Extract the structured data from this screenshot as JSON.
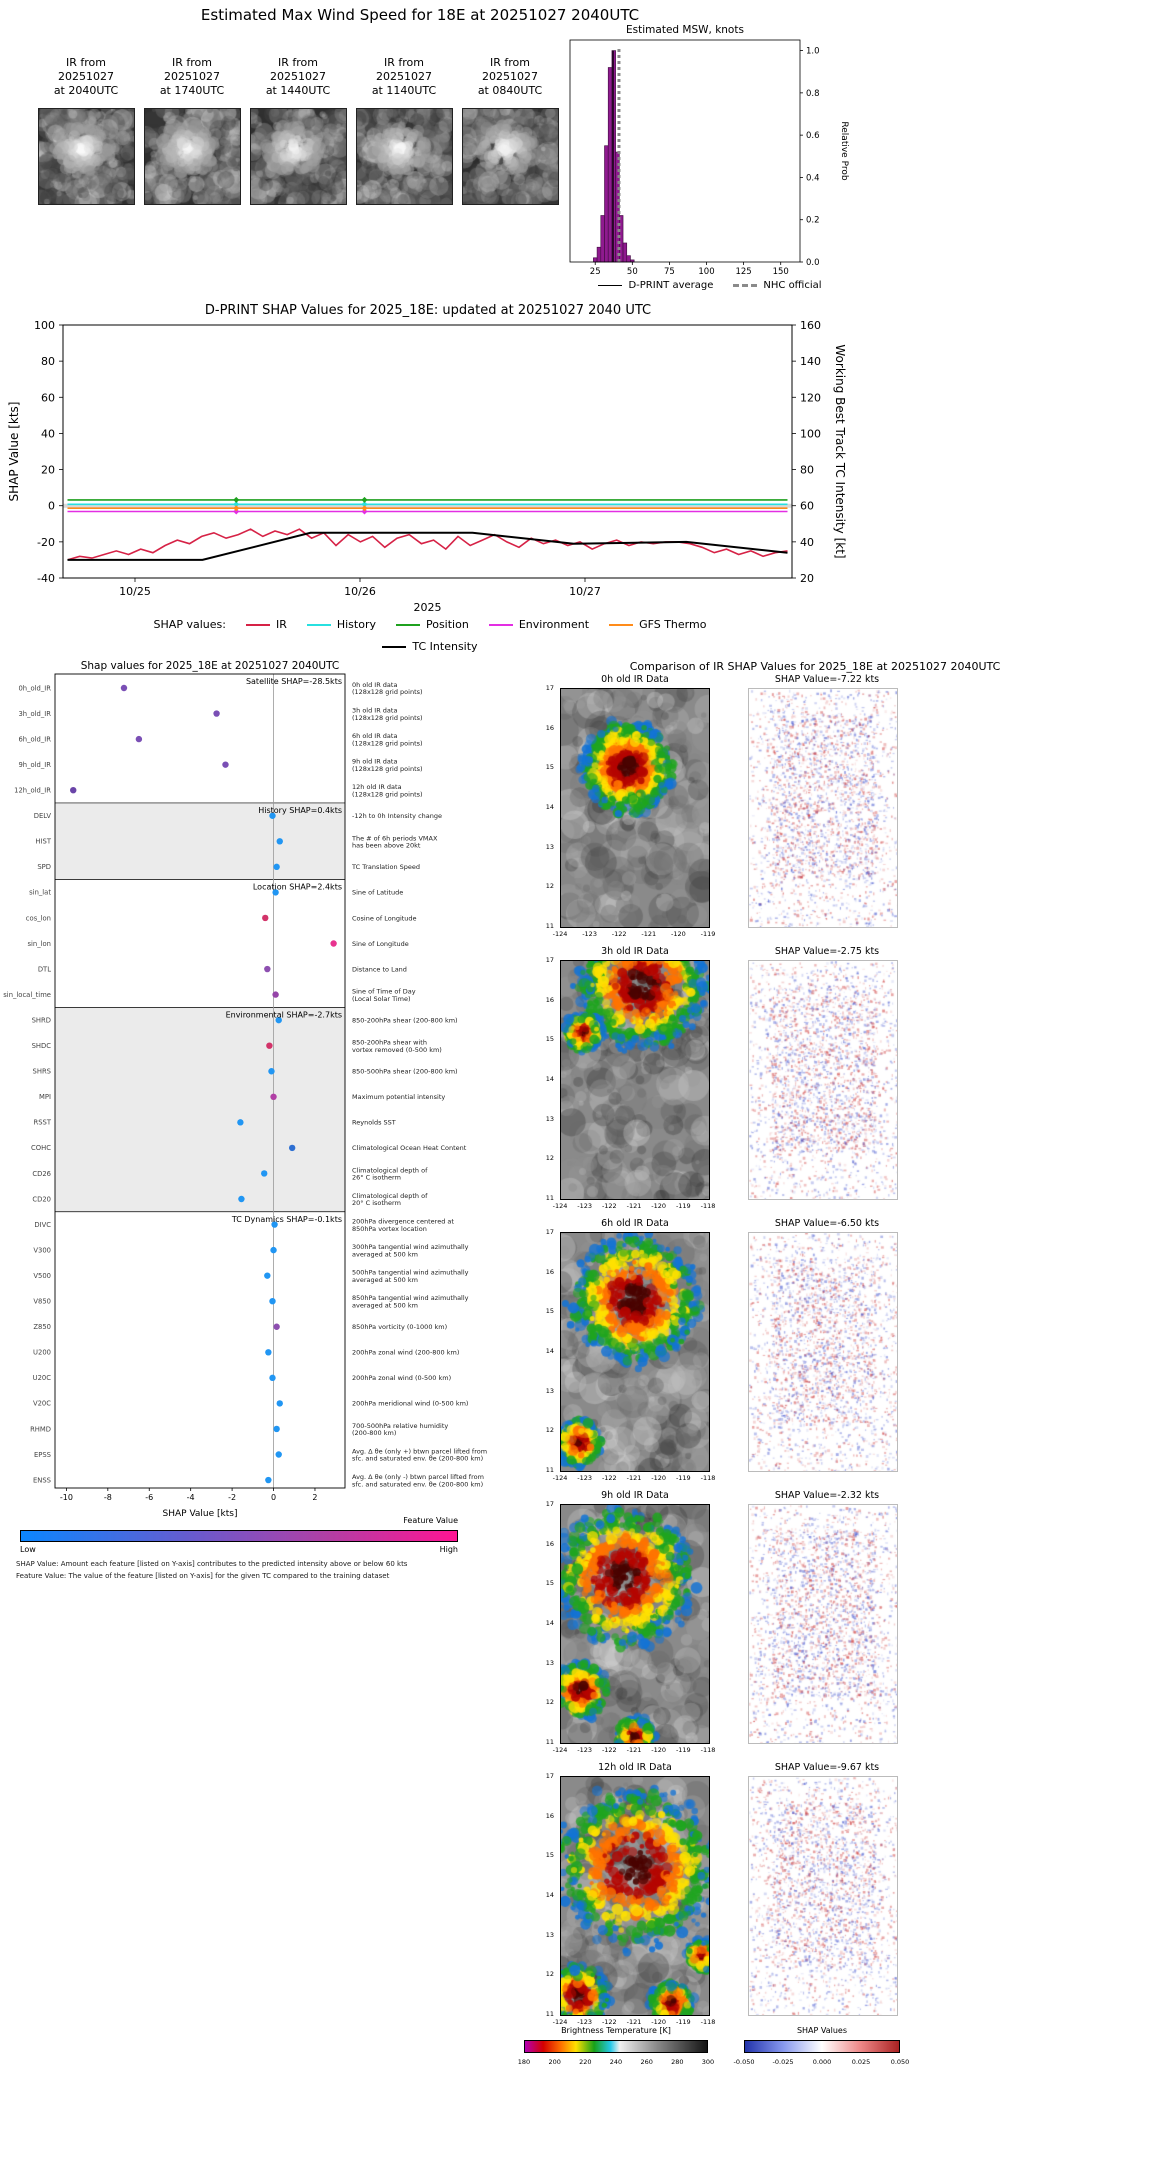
{
  "colors": {
    "hist_fill": "#8f1a8f",
    "hist_edge": "#3f0b3f",
    "nhc_line": "#8a8a8a",
    "dprint_line": "#000000",
    "zero_band": "#d9d9d9",
    "section_shade": "#ebebeb",
    "featurebar": [
      "#0b86ff",
      "#6a5acd",
      "#b13fa5",
      "#ff1493"
    ]
  },
  "top": {
    "title": "Estimated Max Wind Speed for 18E at 20251027 2040UTC",
    "ir_thumbs": [
      {
        "label": "IR from\n20251027\nat 2040UTC"
      },
      {
        "label": "IR from\n20251027\nat 1740UTC"
      },
      {
        "label": "IR from\n20251027\nat 1440UTC"
      },
      {
        "label": "IR from\n20251027\nat 1140UTC"
      },
      {
        "label": "IR from\n20251027\nat 0840UTC"
      }
    ],
    "legend": {
      "dprint": "D-PRINT average",
      "nhc": "NHC official"
    }
  },
  "footnotes": [
    "SHAP Value: Amount each feature [listed on Y-axis] contributes to the predicted intensity above or below 60 kts",
    "Feature Value: The value of the feature [listed on Y-axis] for the given TC compared to the training dataset"
  ],
  "chart_data": [
    {
      "id": "msw-histogram",
      "type": "bar",
      "title": "Estimated MSW, knots",
      "ylabel": "Relative Prob",
      "xlim": [
        8,
        163
      ],
      "ylim": [
        0,
        1.05
      ],
      "xticks": [
        25,
        50,
        75,
        100,
        125,
        150
      ],
      "yticks": [
        "0.0",
        "0.2",
        "0.4",
        "0.6",
        "0.8",
        "1.0"
      ],
      "bin_width": 2.5,
      "bins": [
        25,
        27.5,
        30,
        32.5,
        35,
        37.5,
        40,
        42.5,
        45,
        47.5,
        50
      ],
      "values": [
        0.02,
        0.07,
        0.22,
        0.55,
        0.92,
        1.0,
        0.52,
        0.22,
        0.09,
        0.03,
        0.01
      ],
      "dprint_average": 37,
      "nhc_official": 41
    },
    {
      "id": "shap-timeseries",
      "type": "line",
      "title": "D-PRINT SHAP Values for 2025_18E: updated at 20251027 2040 UTC",
      "ylabel_left": "SHAP Value [kts]",
      "ylabel_right": "Working Best Track TC Intensity [kt]",
      "xlabel": "2025",
      "legend_prefix": "SHAP values:",
      "ylim_left": [
        -40,
        100
      ],
      "ylim_right": [
        20,
        160
      ],
      "yticks_left": [
        100,
        80,
        60,
        40,
        20,
        0,
        -20,
        -40
      ],
      "yticks_right": [
        160,
        140,
        120,
        100,
        80,
        60,
        40,
        20
      ],
      "xticks": [
        "10/25",
        "10/26",
        "10/27"
      ],
      "series": [
        {
          "name": "IR",
          "color": "#d62246",
          "x_start": -0.3,
          "x_end": 2.9,
          "y": [
            -30,
            -28,
            -29,
            -27,
            -25,
            -27,
            -24,
            -26,
            -22,
            -19,
            -21,
            -17,
            -15,
            -18,
            -16,
            -13,
            -17,
            -14,
            -16,
            -13,
            -18,
            -15,
            -22,
            -16,
            -20,
            -17,
            -23,
            -18,
            -16,
            -21,
            -19,
            -24,
            -17,
            -22,
            -19,
            -16,
            -20,
            -23,
            -18,
            -21,
            -19,
            -22,
            -20,
            -24,
            -21,
            -19,
            -22,
            -20,
            -21,
            -20,
            -20,
            -21,
            -23,
            -26,
            -24,
            -27,
            -25,
            -28,
            -26,
            -25
          ]
        },
        {
          "name": "History",
          "color": "#27e0e0",
          "x_start": -0.3,
          "x_end": 2.9,
          "y": [
            0.8,
            0.8
          ],
          "marker_x": [
            0.45,
            1.02
          ]
        },
        {
          "name": "Position",
          "color": "#1fa11f",
          "x_start": -0.3,
          "x_end": 2.9,
          "y": [
            3.2,
            3.2
          ],
          "marker_x": [
            0.45,
            1.02
          ]
        },
        {
          "name": "Environment",
          "color": "#e32ee3",
          "x_start": -0.3,
          "x_end": 2.9,
          "y": [
            -3.2,
            -3.2
          ],
          "marker_x": [
            0.45,
            1.02
          ]
        },
        {
          "name": "GFS Thermo",
          "color": "#ff8c1a",
          "x_start": -0.3,
          "x_end": 2.9,
          "y": [
            -1.4,
            -1.4
          ],
          "marker_x": [
            0.45,
            1.02
          ]
        },
        {
          "name": "TC Intensity",
          "color": "#000000",
          "axis": "right",
          "x": [
            -0.3,
            0.3,
            0.78,
            1.5,
            1.95,
            2.45,
            2.9
          ],
          "y": [
            30,
            30,
            45,
            45,
            39,
            40,
            34
          ]
        }
      ]
    },
    {
      "id": "shap-dotplot",
      "type": "scatter",
      "title": "Shap values for 2025_18E at 20251027 2040UTC",
      "xlabel": "SHAP Value [kts]",
      "xlim": [
        -10.55,
        3.45
      ],
      "xticks": [
        -10,
        -8,
        -6,
        -4,
        -2,
        0,
        2
      ],
      "colorbar": {
        "label": "Feature Value",
        "low": "Low",
        "high": "High"
      },
      "groups": [
        {
          "label": "Satellite SHAP=-28.5kts",
          "shaded": false,
          "features": [
            {
              "name": "0h_old_IR",
              "value": -7.22,
              "color": "#7a4fb5",
              "desc": "0h old IR data\n(128x128 grid points)"
            },
            {
              "name": "3h_old_IR",
              "value": -2.75,
              "color": "#7a4fb5",
              "desc": "3h old IR data\n(128x128 grid points)"
            },
            {
              "name": "6h_old_IR",
              "value": -6.5,
              "color": "#7a4fb5",
              "desc": "6h old IR data\n(128x128 grid points)"
            },
            {
              "name": "9h_old_IR",
              "value": -2.32,
              "color": "#7a4fb5",
              "desc": "9h old IR data\n(128x128 grid points)"
            },
            {
              "name": "12h_old_IR",
              "value": -9.67,
              "color": "#6a44a8",
              "desc": "12h old IR data\n(128x128 grid points)"
            }
          ]
        },
        {
          "label": "History SHAP=0.4kts",
          "shaded": true,
          "features": [
            {
              "name": "DELV",
              "value": -0.05,
              "color": "#2196f3",
              "desc": "-12h to 0h Intensity change"
            },
            {
              "name": "HIST",
              "value": 0.3,
              "color": "#2196f3",
              "desc": "The # of 6h periods VMAX\nhas been above 20kt"
            },
            {
              "name": "SPD",
              "value": 0.15,
              "color": "#2196f3",
              "desc": "TC Translation Speed"
            }
          ]
        },
        {
          "label": "Location SHAP=2.4kts",
          "shaded": false,
          "features": [
            {
              "name": "sin_lat",
              "value": 0.1,
              "color": "#2196f3",
              "desc": "Sine of Latitude"
            },
            {
              "name": "cos_lon",
              "value": -0.4,
              "color": "#d23369",
              "desc": "Cosine of Longitude"
            },
            {
              "name": "sin_lon",
              "value": 2.9,
              "color": "#e8338f",
              "desc": "Sine of Longitude"
            },
            {
              "name": "DTL",
              "value": -0.3,
              "color": "#8d4fb0",
              "desc": "Distance to Land"
            },
            {
              "name": "sin_local_time",
              "value": 0.1,
              "color": "#9544a8",
              "desc": "Sine of Time of Day\n(Local Solar Time)"
            }
          ]
        },
        {
          "label": "Environmental SHAP=-2.7kts",
          "shaded": true,
          "features": [
            {
              "name": "SHRD",
              "value": 0.25,
              "color": "#2196f3",
              "desc": "850-200hPa shear (200-800 km)"
            },
            {
              "name": "SHDC",
              "value": -0.2,
              "color": "#d23369",
              "desc": "850-200hPa shear with\nvortex removed (0-500 km)"
            },
            {
              "name": "SHRS",
              "value": -0.1,
              "color": "#2196f3",
              "desc": "850-500hPa shear (200-800 km)"
            },
            {
              "name": "MPI",
              "value": 0.0,
              "color": "#b13fa5",
              "desc": "Maximum potential intensity"
            },
            {
              "name": "RSST",
              "value": -1.6,
              "color": "#2196f3",
              "desc": "Reynolds SST"
            },
            {
              "name": "COHC",
              "value": 0.9,
              "color": "#2d6fd2",
              "desc": "Climatological Ocean Heat Content"
            },
            {
              "name": "CD26",
              "value": -0.45,
              "color": "#2196f3",
              "desc": "Climatological depth of\n26° C isotherm"
            },
            {
              "name": "CD20",
              "value": -1.55,
              "color": "#2196f3",
              "desc": "Climatological depth of\n20° C isotherm"
            }
          ]
        },
        {
          "label": "TC Dynamics SHAP=-0.1kts",
          "shaded": false,
          "features": [
            {
              "name": "DIVC",
              "value": 0.05,
              "color": "#2196f3",
              "desc": "200hPa divergence centered at\n850hPa vortex location"
            },
            {
              "name": "V300",
              "value": 0.0,
              "color": "#2196f3",
              "desc": "300hPa tangential wind azimuthally\naveraged at 500 km"
            },
            {
              "name": "V500",
              "value": -0.3,
              "color": "#2196f3",
              "desc": "500hPa tangential wind azimuthally\naveraged at 500 km"
            },
            {
              "name": "V850",
              "value": -0.05,
              "color": "#2196f3",
              "desc": "850hPa tangential wind azimuthally\naveraged at 500 km"
            },
            {
              "name": "Z850",
              "value": 0.15,
              "color": "#8d4fb0",
              "desc": "850hPa vorticity (0-1000 km)"
            },
            {
              "name": "U200",
              "value": -0.25,
              "color": "#2196f3",
              "desc": "200hPa zonal wind (200-800 km)"
            },
            {
              "name": "U20C",
              "value": -0.05,
              "color": "#2196f3",
              "desc": "200hPa zonal wind (0-500 km)"
            },
            {
              "name": "V20C",
              "value": 0.3,
              "color": "#2196f3",
              "desc": "200hPa meridional wind (0-500 km)"
            },
            {
              "name": "RHMD",
              "value": 0.15,
              "color": "#2196f3",
              "desc": "700-500hPa relative humidity\n(200-800 km)"
            },
            {
              "name": "EPSS",
              "value": 0.25,
              "color": "#2196f3",
              "desc": "Avg. Δ θe (only +) btwn parcel lifted from\nsfc. and saturated env. θe (200-800 km)"
            },
            {
              "name": "ENSS",
              "value": -0.25,
              "color": "#2196f3",
              "desc": "Avg. Δ θe (only -) btwn parcel lifted from\nsfc. and saturated env. θe (200-800 km)"
            }
          ]
        }
      ]
    },
    {
      "id": "ir-shap-comparison",
      "type": "heatmap",
      "title": "Comparison of IR SHAP Values for 2025_18E at 20251027 2040UTC",
      "rows": [
        {
          "ir_title": "0h old IR Data",
          "shap_title": "SHAP Value=-7.22 kts",
          "yticks": [
            17,
            16,
            15,
            14,
            13,
            12,
            11
          ],
          "xticks": [
            -124,
            -123,
            -122,
            -121,
            -120,
            -119
          ]
        },
        {
          "ir_title": "3h old IR Data",
          "shap_title": "SHAP Value=-2.75 kts",
          "yticks": [
            17,
            16,
            15,
            14,
            13,
            12,
            11
          ],
          "xticks": [
            -124,
            -123,
            -122,
            -121,
            -120,
            -119,
            -118
          ]
        },
        {
          "ir_title": "6h old IR Data",
          "shap_title": "SHAP Value=-6.50 kts",
          "yticks": [
            17,
            16,
            15,
            14,
            13,
            12,
            11
          ],
          "xticks": [
            -124,
            -123,
            -122,
            -121,
            -120,
            -119,
            -118
          ]
        },
        {
          "ir_title": "9h old IR Data",
          "shap_title": "SHAP Value=-2.32 kts",
          "yticks": [
            17,
            16,
            15,
            14,
            13,
            12,
            11
          ],
          "xticks": [
            -124,
            -123,
            -122,
            -121,
            -120,
            -119,
            -118
          ]
        },
        {
          "ir_title": "12h old IR Data",
          "shap_title": "SHAP Value=-9.67 kts",
          "yticks": [
            17,
            16,
            15,
            14,
            13,
            12,
            11
          ],
          "xticks": [
            -124,
            -123,
            -122,
            -121,
            -120,
            -119,
            -118
          ]
        }
      ],
      "colorbars": [
        {
          "label": "Brightness Temperature [K]",
          "ticks": [
            "180",
            "200",
            "220",
            "240",
            "260",
            "280",
            "300"
          ]
        },
        {
          "label": "SHAP Values",
          "ticks": [
            "-0.050",
            "-0.025",
            "0.000",
            "0.025",
            "0.050"
          ]
        }
      ]
    }
  ]
}
